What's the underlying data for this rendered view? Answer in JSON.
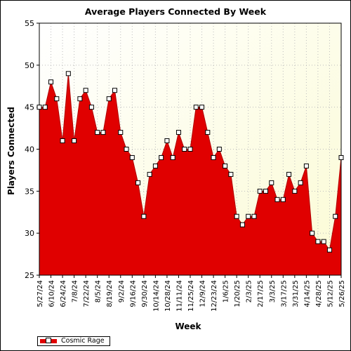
{
  "chart_data": {
    "type": "area",
    "title": "Average Players Connected By Week",
    "xlabel": "Week",
    "ylabel": "Players Connected",
    "ylim": [
      25,
      55
    ],
    "yticks": [
      25,
      30,
      35,
      40,
      45,
      50,
      55
    ],
    "grid": true,
    "legend_position": "bottom-left",
    "tick_labels": [
      "5/27/24",
      "6/10/24",
      "6/24/24",
      "7/8/24",
      "7/22/24",
      "8/5/24",
      "8/19/24",
      "9/2/24",
      "9/16/24",
      "9/30/24",
      "10/14/24",
      "10/28/24",
      "11/11/24",
      "11/25/24",
      "12/9/24",
      "12/23/24",
      "1/6/25",
      "1/20/25",
      "2/3/25",
      "2/17/25",
      "3/3/25",
      "3/17/25",
      "3/31/25",
      "4/14/25",
      "4/28/25",
      "5/12/25",
      "5/26/25"
    ],
    "series": [
      {
        "name": "Cosmic Rage",
        "color": "#e00000",
        "values": [
          45,
          45,
          48,
          46,
          41,
          49,
          41,
          46,
          47,
          45,
          42,
          42,
          46,
          47,
          42,
          40,
          39,
          36,
          32,
          37,
          38,
          39,
          41,
          39,
          42,
          40,
          40,
          45,
          45,
          42,
          39,
          40,
          38,
          37,
          32,
          31,
          32,
          32,
          35,
          35,
          36,
          34,
          34,
          37,
          35,
          36,
          38,
          30,
          29,
          29,
          28,
          32,
          39
        ]
      }
    ]
  }
}
